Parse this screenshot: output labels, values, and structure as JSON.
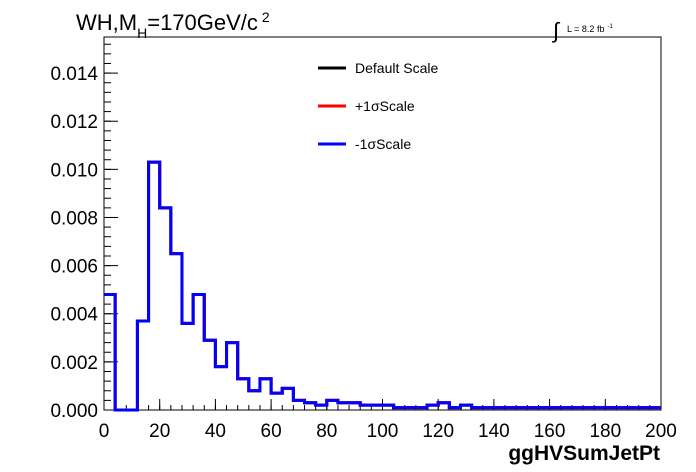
{
  "chart_data": {
    "type": "step",
    "title_main": "WH,M",
    "title_sub": "H",
    "title_rest": "=170GeV/c",
    "title_sup": "2",
    "lumi_label": "L = 8.2 fb",
    "lumi_sup": "-1",
    "xlabel": "ggHVSumJetPt",
    "ylabel": "",
    "xlim": [
      0,
      200
    ],
    "ylim": [
      0,
      0.0155
    ],
    "x_ticks": [
      "0",
      "20",
      "40",
      "60",
      "80",
      "100",
      "120",
      "140",
      "160",
      "180",
      "200"
    ],
    "y_ticks": [
      "0.000",
      "0.002",
      "0.004",
      "0.006",
      "0.008",
      "0.010",
      "0.012",
      "0.014"
    ],
    "bin_width": 4,
    "legend_position": "top-right",
    "series": [
      {
        "name": "Default Scale",
        "color": "#000000",
        "values": [
          0.0048,
          0.0,
          0.0,
          0.0037,
          0.0103,
          0.0084,
          0.0065,
          0.0036,
          0.0048,
          0.0029,
          0.0018,
          0.0028,
          0.0013,
          0.0008,
          0.0013,
          0.0007,
          0.0009,
          0.0004,
          0.0003,
          0.0002,
          0.0004,
          0.0003,
          0.0003,
          0.0002,
          0.0002,
          0.0002,
          0.0001,
          0.0001,
          0.0001,
          0.0002,
          0.0003,
          0.0001,
          0.0002,
          0.0001,
          0.0001,
          0.0001,
          0.0001,
          0.0001,
          0.0001,
          0.0001,
          0.0001,
          0.0001,
          0.0001,
          0.0001,
          0.0001,
          0.0001,
          0.0001,
          0.0001,
          0.0001,
          0.0001
        ]
      },
      {
        "name": "+1σScale",
        "color": "#ff0000",
        "values": [
          0.0048,
          0.0,
          0.0,
          0.0037,
          0.0103,
          0.0084,
          0.0065,
          0.0036,
          0.0048,
          0.0029,
          0.0018,
          0.0028,
          0.0013,
          0.0008,
          0.0013,
          0.0007,
          0.0009,
          0.0004,
          0.0003,
          0.0002,
          0.0004,
          0.0003,
          0.0003,
          0.0002,
          0.0002,
          0.0002,
          0.0001,
          0.0001,
          0.0001,
          0.0002,
          0.0003,
          0.0001,
          0.0002,
          0.0001,
          0.0001,
          0.0001,
          0.0001,
          0.0001,
          0.0001,
          0.0001,
          0.0001,
          0.0001,
          0.0001,
          0.0001,
          0.0001,
          0.0001,
          0.0001,
          0.0001,
          0.0001,
          0.0001
        ]
      },
      {
        "name": "-1σScale",
        "color": "#0000ff",
        "values": [
          0.0048,
          0.0,
          0.0,
          0.0037,
          0.0103,
          0.0084,
          0.0065,
          0.0036,
          0.0048,
          0.0029,
          0.0018,
          0.0028,
          0.0013,
          0.0008,
          0.0013,
          0.0007,
          0.0009,
          0.0004,
          0.0003,
          0.0002,
          0.0004,
          0.0003,
          0.0003,
          0.0002,
          0.0002,
          0.0002,
          0.0001,
          0.0001,
          0.0001,
          0.0002,
          0.0003,
          0.0001,
          0.0002,
          0.0001,
          0.0001,
          0.0001,
          0.0001,
          0.0001,
          0.0001,
          0.0001,
          0.0001,
          0.0001,
          0.0001,
          0.0001,
          0.0001,
          0.0001,
          0.0001,
          0.0001,
          0.0001,
          0.0001
        ]
      }
    ]
  }
}
